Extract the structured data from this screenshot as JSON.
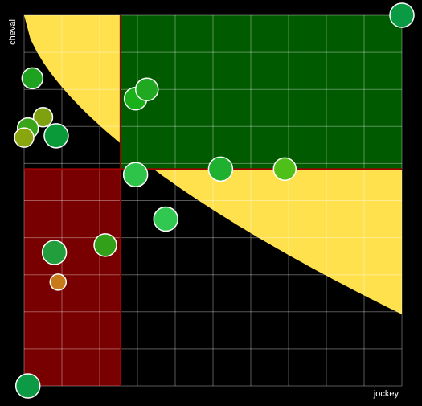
{
  "chart_data": {
    "type": "scatter",
    "xlabel": "jockey",
    "ylabel": "cheval",
    "xlim": [
      0,
      10
    ],
    "ylim": [
      0,
      10
    ],
    "grid": true,
    "thresholds": {
      "x": 2.55,
      "y": 5.85
    },
    "regions": [
      {
        "name": "top-right",
        "color": "#005a00"
      },
      {
        "name": "bottom-left",
        "color": "#780000"
      },
      {
        "name": "curve-band",
        "color": "#ffe14d"
      }
    ],
    "points": [
      {
        "x": 0.22,
        "y": 8.3,
        "r": 13,
        "color": "#1fa21f"
      },
      {
        "x": 0.5,
        "y": 7.25,
        "r": 12,
        "color": "#7fa00f"
      },
      {
        "x": 0.1,
        "y": 6.95,
        "r": 13,
        "color": "#3aa51a"
      },
      {
        "x": 0.0,
        "y": 6.7,
        "r": 12,
        "color": "#8aa60f"
      },
      {
        "x": 0.85,
        "y": 6.75,
        "r": 15,
        "color": "#0a9a3a"
      },
      {
        "x": 2.95,
        "y": 7.75,
        "r": 14,
        "color": "#19b019"
      },
      {
        "x": 3.25,
        "y": 8.0,
        "r": 14,
        "color": "#20a820"
      },
      {
        "x": 2.95,
        "y": 5.7,
        "r": 15,
        "color": "#2ec44a"
      },
      {
        "x": 5.2,
        "y": 5.85,
        "r": 15,
        "color": "#20b030"
      },
      {
        "x": 6.9,
        "y": 5.85,
        "r": 14,
        "color": "#4fc01a"
      },
      {
        "x": 3.75,
        "y": 4.5,
        "r": 15,
        "color": "#30c850"
      },
      {
        "x": 2.15,
        "y": 3.8,
        "r": 14,
        "color": "#33a01a"
      },
      {
        "x": 0.8,
        "y": 3.6,
        "r": 15,
        "color": "#239e3c"
      },
      {
        "x": 0.9,
        "y": 2.8,
        "r": 10,
        "color": "#c77a1a"
      },
      {
        "x": 0.1,
        "y": 0.0,
        "r": 15,
        "color": "#0c9a44"
      },
      {
        "x": 10.0,
        "y": 10.0,
        "r": 15,
        "color": "#0a9a44"
      }
    ]
  }
}
